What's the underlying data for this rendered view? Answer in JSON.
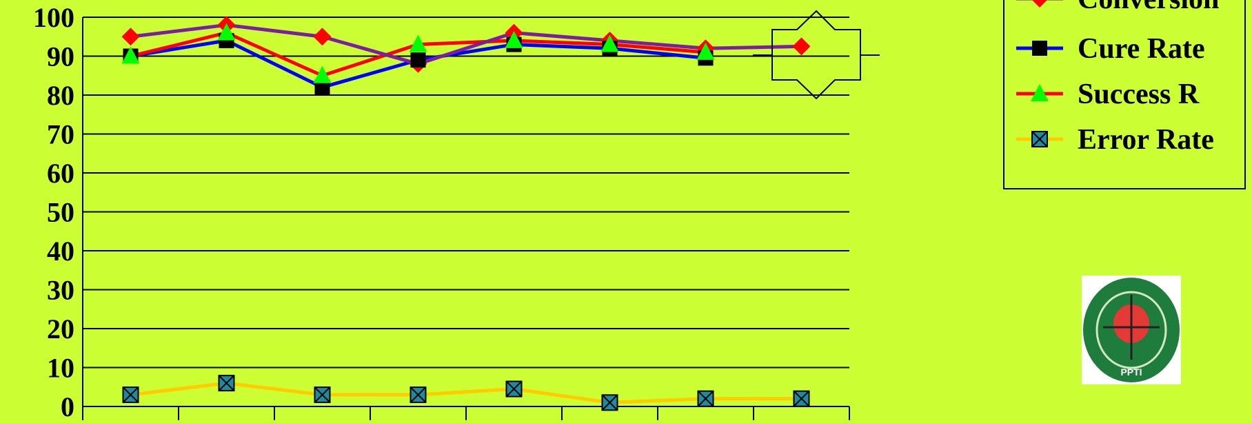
{
  "chart_data": {
    "type": "line",
    "title": "",
    "xlabel": "",
    "ylabel": "",
    "ylim": [
      0,
      100
    ],
    "yticks": [
      0,
      10,
      20,
      30,
      40,
      50,
      60,
      70,
      80,
      90,
      100
    ],
    "x_points": 8,
    "grid": "horizontal",
    "legend_position": "top-right",
    "series": [
      {
        "name": "Conversion",
        "color": "#7b1fa2",
        "marker": "diamond",
        "marker_color": "#ff0000",
        "values": [
          95,
          98,
          95,
          88,
          96,
          94,
          92,
          92.5
        ]
      },
      {
        "name": "Cure Rate",
        "color": "#0000ff",
        "marker": "square",
        "marker_color": "#000000",
        "values": [
          90,
          94,
          82,
          89,
          93,
          92,
          89.5,
          null
        ]
      },
      {
        "name": "Success R",
        "color": "#ff0000",
        "marker": "triangle",
        "marker_color": "#00ff00",
        "values": [
          90,
          96,
          85,
          93,
          94,
          93,
          91,
          null
        ]
      },
      {
        "name": "Error Rate",
        "color": "#ffcc00",
        "marker": "x-square",
        "marker_color": "#1e8ca0",
        "values": [
          3,
          6,
          3,
          3,
          4.5,
          1,
          2,
          2
        ]
      }
    ]
  },
  "logo": {
    "name": "ppti-logo",
    "text": "PPTI"
  }
}
